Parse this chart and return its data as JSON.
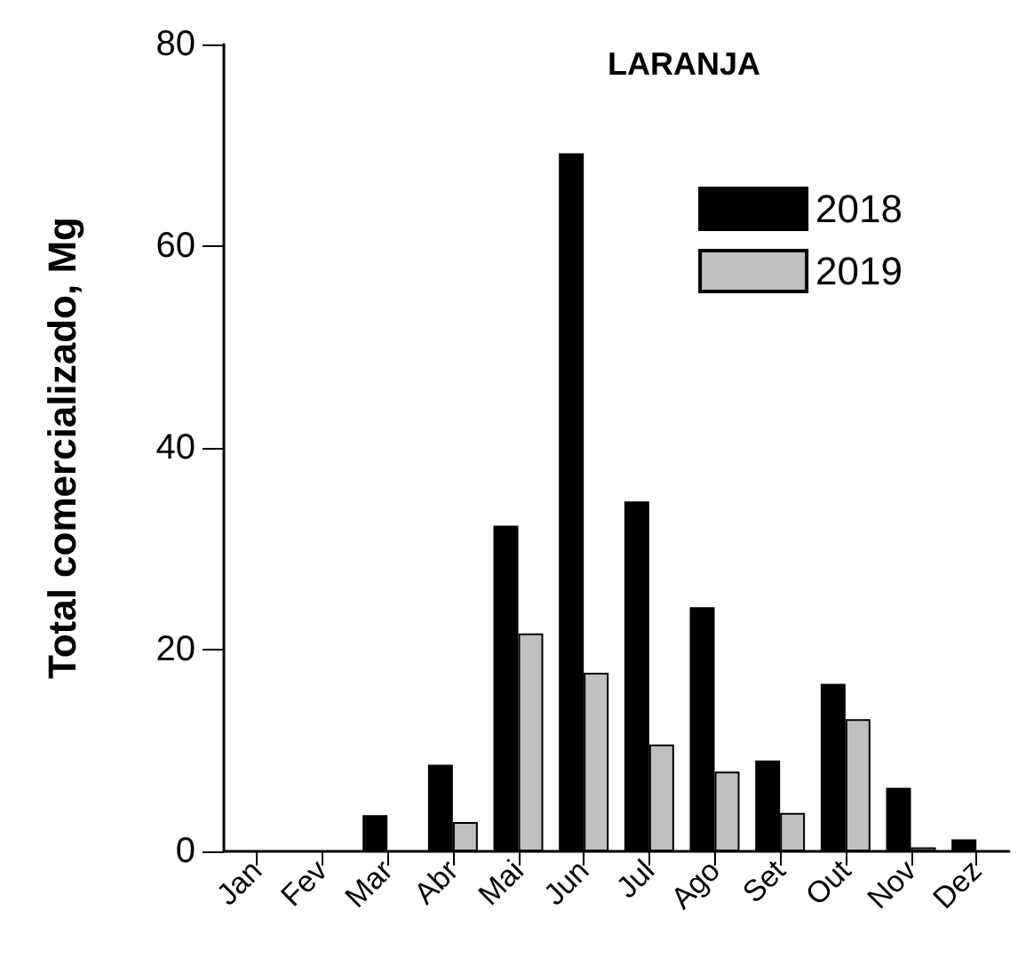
{
  "chart_data": {
    "type": "bar",
    "title": "LARANJA",
    "ylabel": "Total comercializado, Mg",
    "categories": [
      "Jan",
      "Fev",
      "Mar",
      "Abr",
      "Mai",
      "Jun",
      "Jul",
      "Ago",
      "Set",
      "Out",
      "Nov",
      "Dez"
    ],
    "series": [
      {
        "name": "2018",
        "color": "#000000",
        "values": [
          0,
          0,
          3.6,
          8.6,
          32.3,
          69.2,
          34.7,
          24.2,
          9.0,
          16.6,
          6.3,
          1.2
        ]
      },
      {
        "name": "2019",
        "color": "#c0c0c0",
        "values": [
          0,
          0,
          0,
          2.9,
          21.6,
          17.7,
          10.6,
          7.9,
          3.8,
          13.1,
          0.4,
          0
        ]
      }
    ],
    "ylim": [
      0,
      80
    ],
    "yticks": [
      0,
      20,
      40,
      60,
      80
    ],
    "grid": false,
    "legend": "top right"
  }
}
